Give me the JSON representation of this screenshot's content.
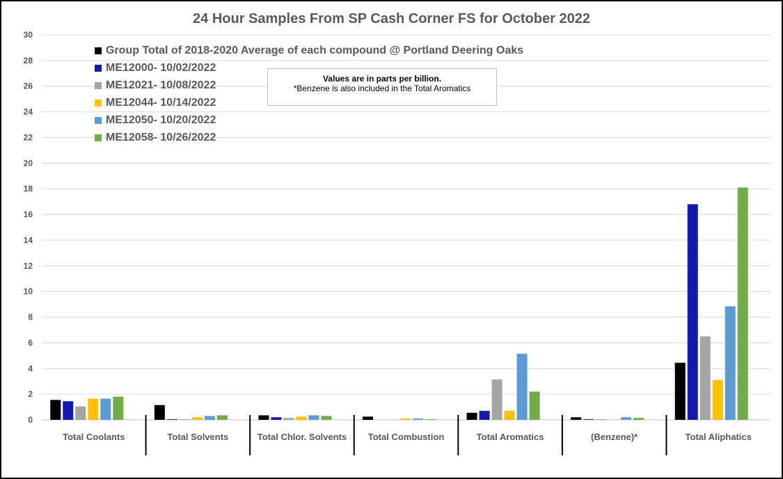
{
  "chart_data": {
    "type": "bar",
    "title": "24 Hour Samples From SP Cash Corner FS for October 2022",
    "categories": [
      "Total Coolants",
      "Total Solvents",
      "Total Chlor. Solvents",
      "Total Combustion",
      "Total Aromatics",
      "(Benzene)*",
      "Total Aliphatics"
    ],
    "ylim": [
      0,
      30
    ],
    "yticks": [
      0,
      2,
      4,
      6,
      8,
      10,
      12,
      14,
      16,
      18,
      20,
      22,
      24,
      26,
      28,
      30
    ],
    "grid": true,
    "legend_position": "top-left",
    "series": [
      {
        "name": "Group Total of 2018-2020 Average of each compound @ Portland Deering Oaks",
        "color": "#000000",
        "values": [
          1.55,
          1.15,
          0.35,
          0.25,
          0.55,
          0.2,
          4.45
        ]
      },
      {
        "name": "ME12000- 10/02/2022",
        "color": "#1619b0",
        "values": [
          1.45,
          0.05,
          0.2,
          0,
          0.7,
          0.05,
          16.8
        ]
      },
      {
        "name": "ME12021- 10/08/2022",
        "color": "#a5a5a5",
        "values": [
          1.05,
          0.05,
          0.15,
          0,
          3.15,
          0.05,
          6.5
        ]
      },
      {
        "name": "ME12044- 10/14/2022",
        "color": "#ffc000",
        "values": [
          1.65,
          0.2,
          0.25,
          0.1,
          0.7,
          0,
          3.1
        ]
      },
      {
        "name": "ME12050- 10/20/2022",
        "color": "#5b9bd5",
        "values": [
          1.65,
          0.3,
          0.35,
          0.1,
          5.15,
          0.2,
          8.85
        ]
      },
      {
        "name": "ME12058- 10/26/2022",
        "color": "#70ad47",
        "values": [
          1.8,
          0.35,
          0.3,
          0.05,
          2.2,
          0.15,
          18.1
        ]
      }
    ],
    "annotation": {
      "line1": "Values are in parts per billion.",
      "line2": "*Benzene is also included in the Total Aromatics"
    }
  }
}
